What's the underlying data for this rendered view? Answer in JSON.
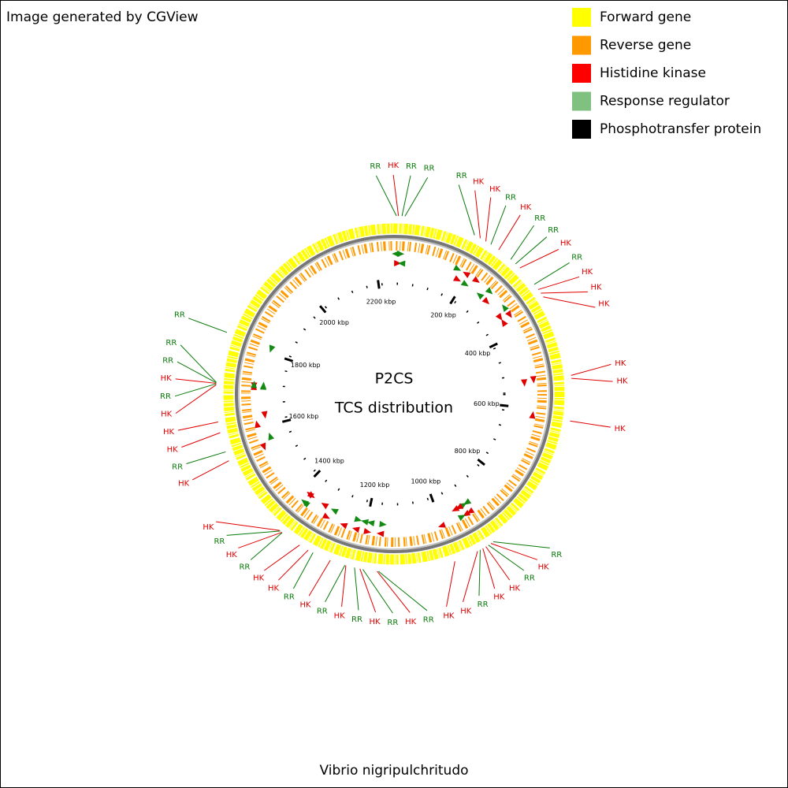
{
  "header": {
    "title": "Image generated by CGView"
  },
  "legend": [
    {
      "label": "Forward gene",
      "color": "#ffff00"
    },
    {
      "label": "Reverse gene",
      "color": "#ff9900"
    },
    {
      "label": "Histidine kinase",
      "color": "#ff0000"
    },
    {
      "label": "Response regulator",
      "color": "#80c080"
    },
    {
      "label": "Phosphotransfer protein",
      "color": "#000000"
    }
  ],
  "center": {
    "title": "P2CS",
    "subtitle": "TCS distribution"
  },
  "footer": {
    "caption": "Vibrio nigripulchritudo"
  },
  "ticks": [
    {
      "value": 200,
      "label": "200 kbp"
    },
    {
      "value": 400,
      "label": "400 kbp"
    },
    {
      "value": 600,
      "label": "600 kbp"
    },
    {
      "value": 800,
      "label": "800 kbp"
    },
    {
      "value": 1000,
      "label": "1000 kbp"
    },
    {
      "value": 1200,
      "label": "1200 kbp"
    },
    {
      "value": 1400,
      "label": "1400 kbp"
    },
    {
      "value": 1600,
      "label": "1600 kbp"
    },
    {
      "value": 1800,
      "label": "1800 kbp"
    },
    {
      "value": 2000,
      "label": "2000 kbp"
    },
    {
      "value": 2200,
      "label": "2200 kbp"
    }
  ],
  "features": [
    {
      "label": "RR",
      "kbp": 5
    },
    {
      "label": "HK",
      "kbp": 9
    },
    {
      "label": "RR",
      "kbp": 16
    },
    {
      "label": "RR",
      "kbp": 22
    },
    {
      "label": "RR",
      "kbp": 168
    },
    {
      "label": "HK",
      "kbp": 181
    },
    {
      "label": "HK",
      "kbp": 194
    },
    {
      "label": "RR",
      "kbp": 206
    },
    {
      "label": "HK",
      "kbp": 225
    },
    {
      "label": "RR",
      "kbp": 256
    },
    {
      "label": "RR",
      "kbp": 269
    },
    {
      "label": "HK",
      "kbp": 281
    },
    {
      "label": "RR",
      "kbp": 325
    },
    {
      "label": "HK",
      "kbp": 338
    },
    {
      "label": "HK",
      "kbp": 347
    },
    {
      "label": "HK",
      "kbp": 356
    },
    {
      "label": "HK",
      "kbp": 525
    },
    {
      "label": "HK",
      "kbp": 531
    },
    {
      "label": "HK",
      "kbp": 617
    },
    {
      "label": "RR",
      "kbp": 913
    },
    {
      "label": "HK",
      "kbp": 919
    },
    {
      "label": "RR",
      "kbp": 925
    },
    {
      "label": "HK",
      "kbp": 931
    },
    {
      "label": "HK",
      "kbp": 938
    },
    {
      "label": "RR",
      "kbp": 944
    },
    {
      "label": "HK",
      "kbp": 950
    },
    {
      "label": "HK",
      "kbp": 1000
    },
    {
      "label": "RR",
      "kbp": 1156
    },
    {
      "label": "HK",
      "kbp": 1159
    },
    {
      "label": "RR",
      "kbp": 1188
    },
    {
      "label": "HK",
      "kbp": 1194
    },
    {
      "label": "RR",
      "kbp": 1205
    },
    {
      "label": "HK",
      "kbp": 1223
    },
    {
      "label": "RR",
      "kbp": 1225
    },
    {
      "label": "HK",
      "kbp": 1256
    },
    {
      "label": "RR",
      "kbp": 1294
    },
    {
      "label": "HK",
      "kbp": 1305
    },
    {
      "label": "HK",
      "kbp": 1325
    },
    {
      "label": "RR",
      "kbp": 1368
    },
    {
      "label": "HK",
      "kbp": 1369
    },
    {
      "label": "RR",
      "kbp": 1373
    },
    {
      "label": "HK",
      "kbp": 1375
    },
    {
      "label": "HK",
      "kbp": 1550
    },
    {
      "label": "RR",
      "kbp": 1569
    },
    {
      "label": "HK",
      "kbp": 1609
    },
    {
      "label": "HK",
      "kbp": 1631
    },
    {
      "label": "HK",
      "kbp": 1706
    },
    {
      "label": "RR",
      "kbp": 1708
    },
    {
      "label": "HK",
      "kbp": 1709
    },
    {
      "label": "RR",
      "kbp": 1710
    },
    {
      "label": "RR",
      "kbp": 1711
    },
    {
      "label": "RR",
      "kbp": 1814
    }
  ]
}
